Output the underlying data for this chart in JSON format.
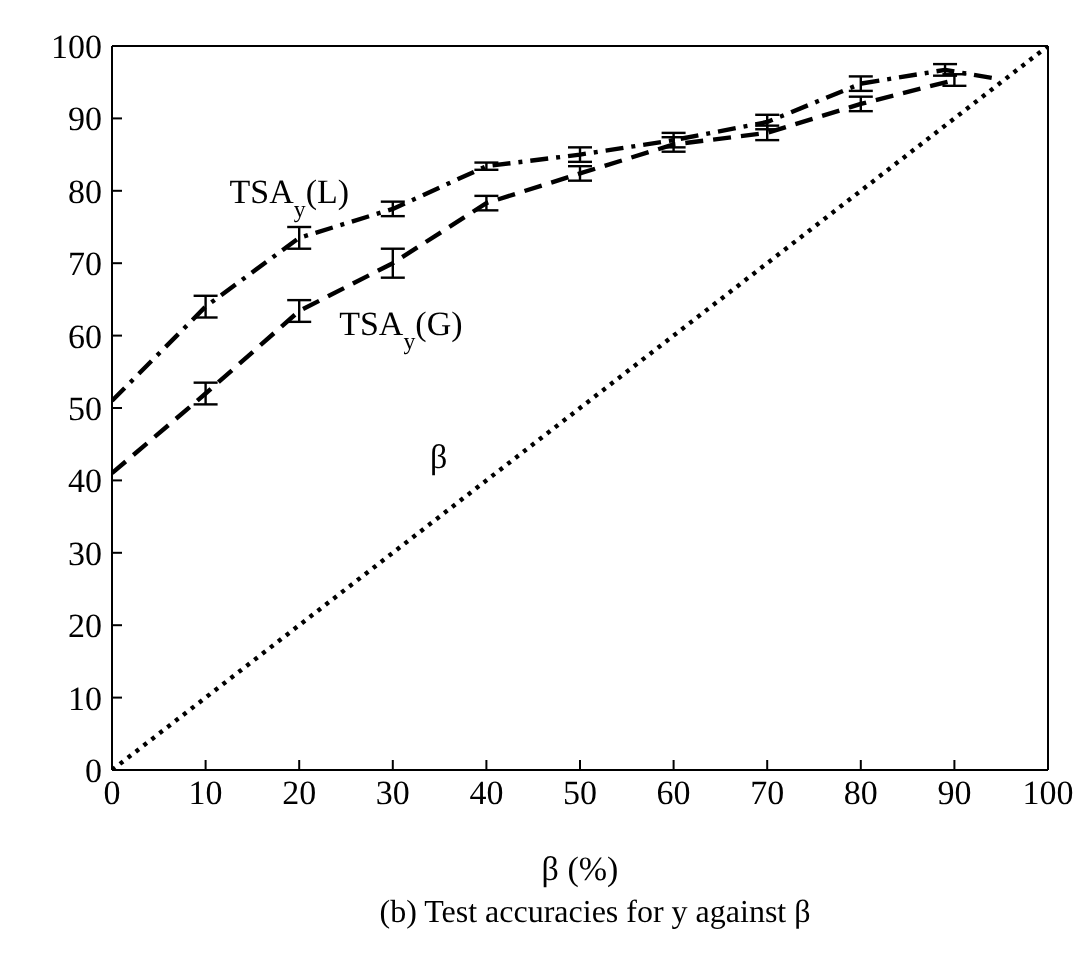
{
  "chart_data": {
    "type": "line",
    "xlabel": "β (%)",
    "x": [
      0,
      10,
      20,
      30,
      40,
      50,
      60,
      70,
      80,
      90
    ],
    "series": [
      {
        "name": "TSA$_{y}$(L)",
        "color": "#000000",
        "line_style": "dashdot",
        "x": [
          0,
          10,
          20,
          30,
          40,
          50,
          60,
          70,
          80,
          89,
          94
        ],
        "values": [
          51,
          64,
          73.5,
          77.5,
          83.4,
          85,
          87,
          89.5,
          94.8,
          96.7,
          95.6
        ],
        "errors": [
          null,
          1.5,
          1.5,
          1,
          0.5,
          1,
          1,
          1,
          1,
          0.8,
          null
        ]
      },
      {
        "name": "TSA$_{y}$(G)",
        "color": "#000000",
        "line_style": "dashed",
        "values": [
          41,
          52,
          63.4,
          70,
          78.3,
          82.4,
          86.4,
          88,
          92,
          95.3
        ],
        "errors": [
          null,
          1.5,
          1.5,
          2,
          1,
          1,
          1,
          1,
          1,
          0.8
        ]
      },
      {
        "name": "β",
        "color": "#000000",
        "line_style": "dotted",
        "x": [
          0,
          50,
          100
        ],
        "values": [
          0,
          50,
          100
        ]
      }
    ],
    "xlim": [
      0,
      100
    ],
    "xticks": [
      0,
      10,
      20,
      30,
      40,
      50,
      60,
      70,
      80,
      90,
      100
    ],
    "ylim": [
      0,
      100
    ],
    "yticks": [
      0,
      10,
      20,
      30,
      40,
      50,
      60,
      70,
      80,
      90,
      100
    ],
    "grid": false,
    "legend": false,
    "marker": "none",
    "annotations": [
      "(b) Test accuracies for y against β"
    ]
  }
}
